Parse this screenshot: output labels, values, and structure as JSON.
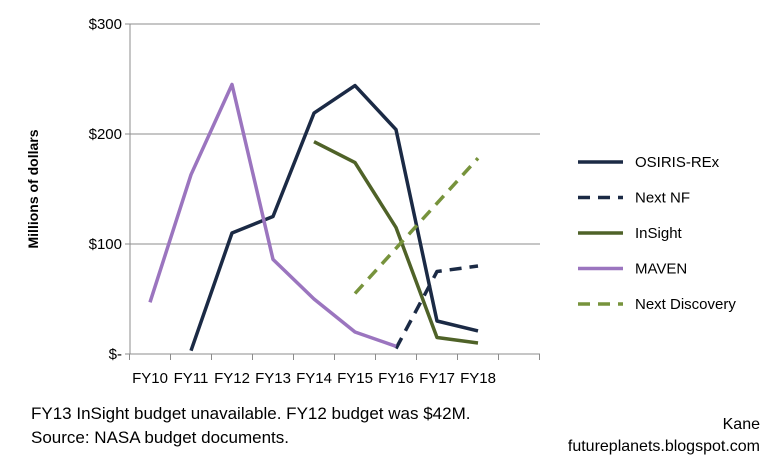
{
  "notes": {
    "line1": "FY13 InSight budget unavailable.   FY12 budget was $42M.",
    "line2": "Source: NASA budget documents."
  },
  "credit": {
    "author": "Kane",
    "site": "futureplanets.blogspot.com"
  },
  "chart_data": {
    "type": "line",
    "title": "",
    "xlabel": "",
    "ylabel": "Millions of dollars",
    "categories": [
      "FY10",
      "FY11",
      "FY12",
      "FY13",
      "FY14",
      "FY15",
      "FY16",
      "FY17",
      "FY18"
    ],
    "ylim": [
      0,
      300
    ],
    "yticks": [
      {
        "value": 0,
        "label": "$-"
      },
      {
        "value": 100,
        "label": "$100"
      },
      {
        "value": 200,
        "label": "$200"
      },
      {
        "value": 300,
        "label": "$300"
      }
    ],
    "grid": true,
    "legend_position": "right",
    "series": [
      {
        "name": "OSIRIS-REx",
        "color": "#1b2a45",
        "dash": "solid",
        "points": [
          [
            1,
            3
          ],
          [
            2,
            110
          ],
          [
            3,
            125
          ],
          [
            4,
            219
          ],
          [
            5,
            244
          ],
          [
            6,
            204
          ],
          [
            7,
            30
          ],
          [
            8,
            21
          ]
        ]
      },
      {
        "name": "Next NF",
        "color": "#1b2a45",
        "dash": "dashed",
        "points": [
          [
            6,
            5
          ],
          [
            7,
            75
          ],
          [
            8,
            80
          ]
        ]
      },
      {
        "name": "InSight",
        "color": "#4f6228",
        "dash": "solid",
        "points": [
          [
            4,
            193
          ],
          [
            5,
            174
          ],
          [
            6,
            115
          ],
          [
            7,
            15
          ],
          [
            8,
            10
          ]
        ]
      },
      {
        "name": "MAVEN",
        "color": "#9b75bf",
        "dash": "solid",
        "points": [
          [
            0,
            47
          ],
          [
            1,
            163
          ],
          [
            2,
            245
          ],
          [
            3,
            86
          ],
          [
            4,
            50
          ],
          [
            5,
            20
          ],
          [
            6,
            7
          ]
        ]
      },
      {
        "name": "Next Discovery",
        "color": "#77933c",
        "dash": "dashed",
        "points": [
          [
            5,
            55
          ],
          [
            8,
            178
          ]
        ]
      }
    ]
  }
}
